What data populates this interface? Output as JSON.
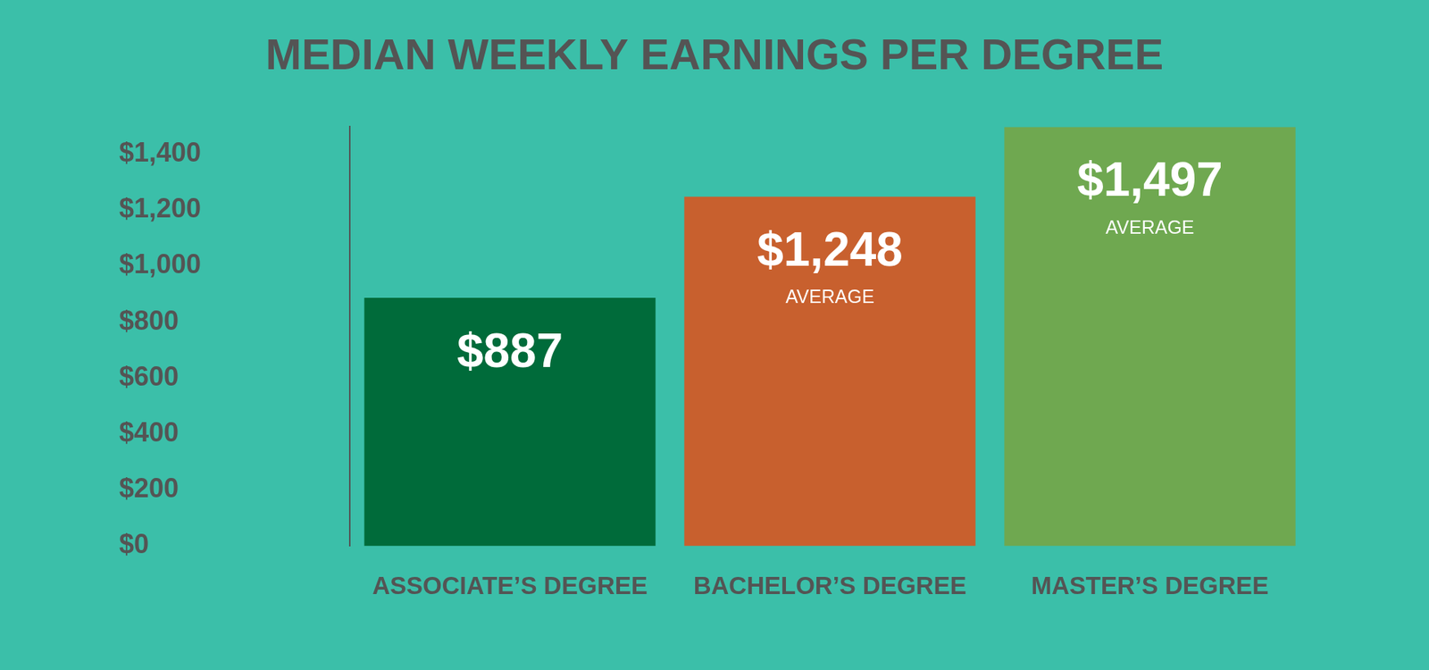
{
  "chart_data": {
    "type": "bar",
    "title": "MEDIAN WEEKLY EARNINGS PER DEGREE",
    "categories": [
      "ASSOCIATE’S DEGREE",
      "BACHELOR’S DEGREE",
      "MASTER’S DEGREE"
    ],
    "values": [
      887,
      1248,
      1497
    ],
    "value_labels": [
      "$887",
      "$1,248",
      "$1,497"
    ],
    "colors": [
      "#006b3a",
      "#c8602e",
      "#6fa850"
    ],
    "ylim": [
      0,
      1500
    ],
    "yticks": [
      {
        "value": 0,
        "label": "$0"
      },
      {
        "value": 200,
        "label": "$200"
      },
      {
        "value": 400,
        "label": "$400"
      },
      {
        "value": 600,
        "label": "$600"
      },
      {
        "value": 800,
        "label": "$800"
      },
      {
        "value": 1000,
        "label": "$1,000"
      },
      {
        "value": 1200,
        "label": "$1,200"
      },
      {
        "value": 1400,
        "label": "$1,400"
      }
    ],
    "grid": false,
    "data_labels": true,
    "annotations": [
      {
        "category": "BACHELOR’S DEGREE",
        "text": "AVERAGE"
      },
      {
        "category": "MASTER’S DEGREE",
        "text": "AVERAGE"
      }
    ]
  }
}
